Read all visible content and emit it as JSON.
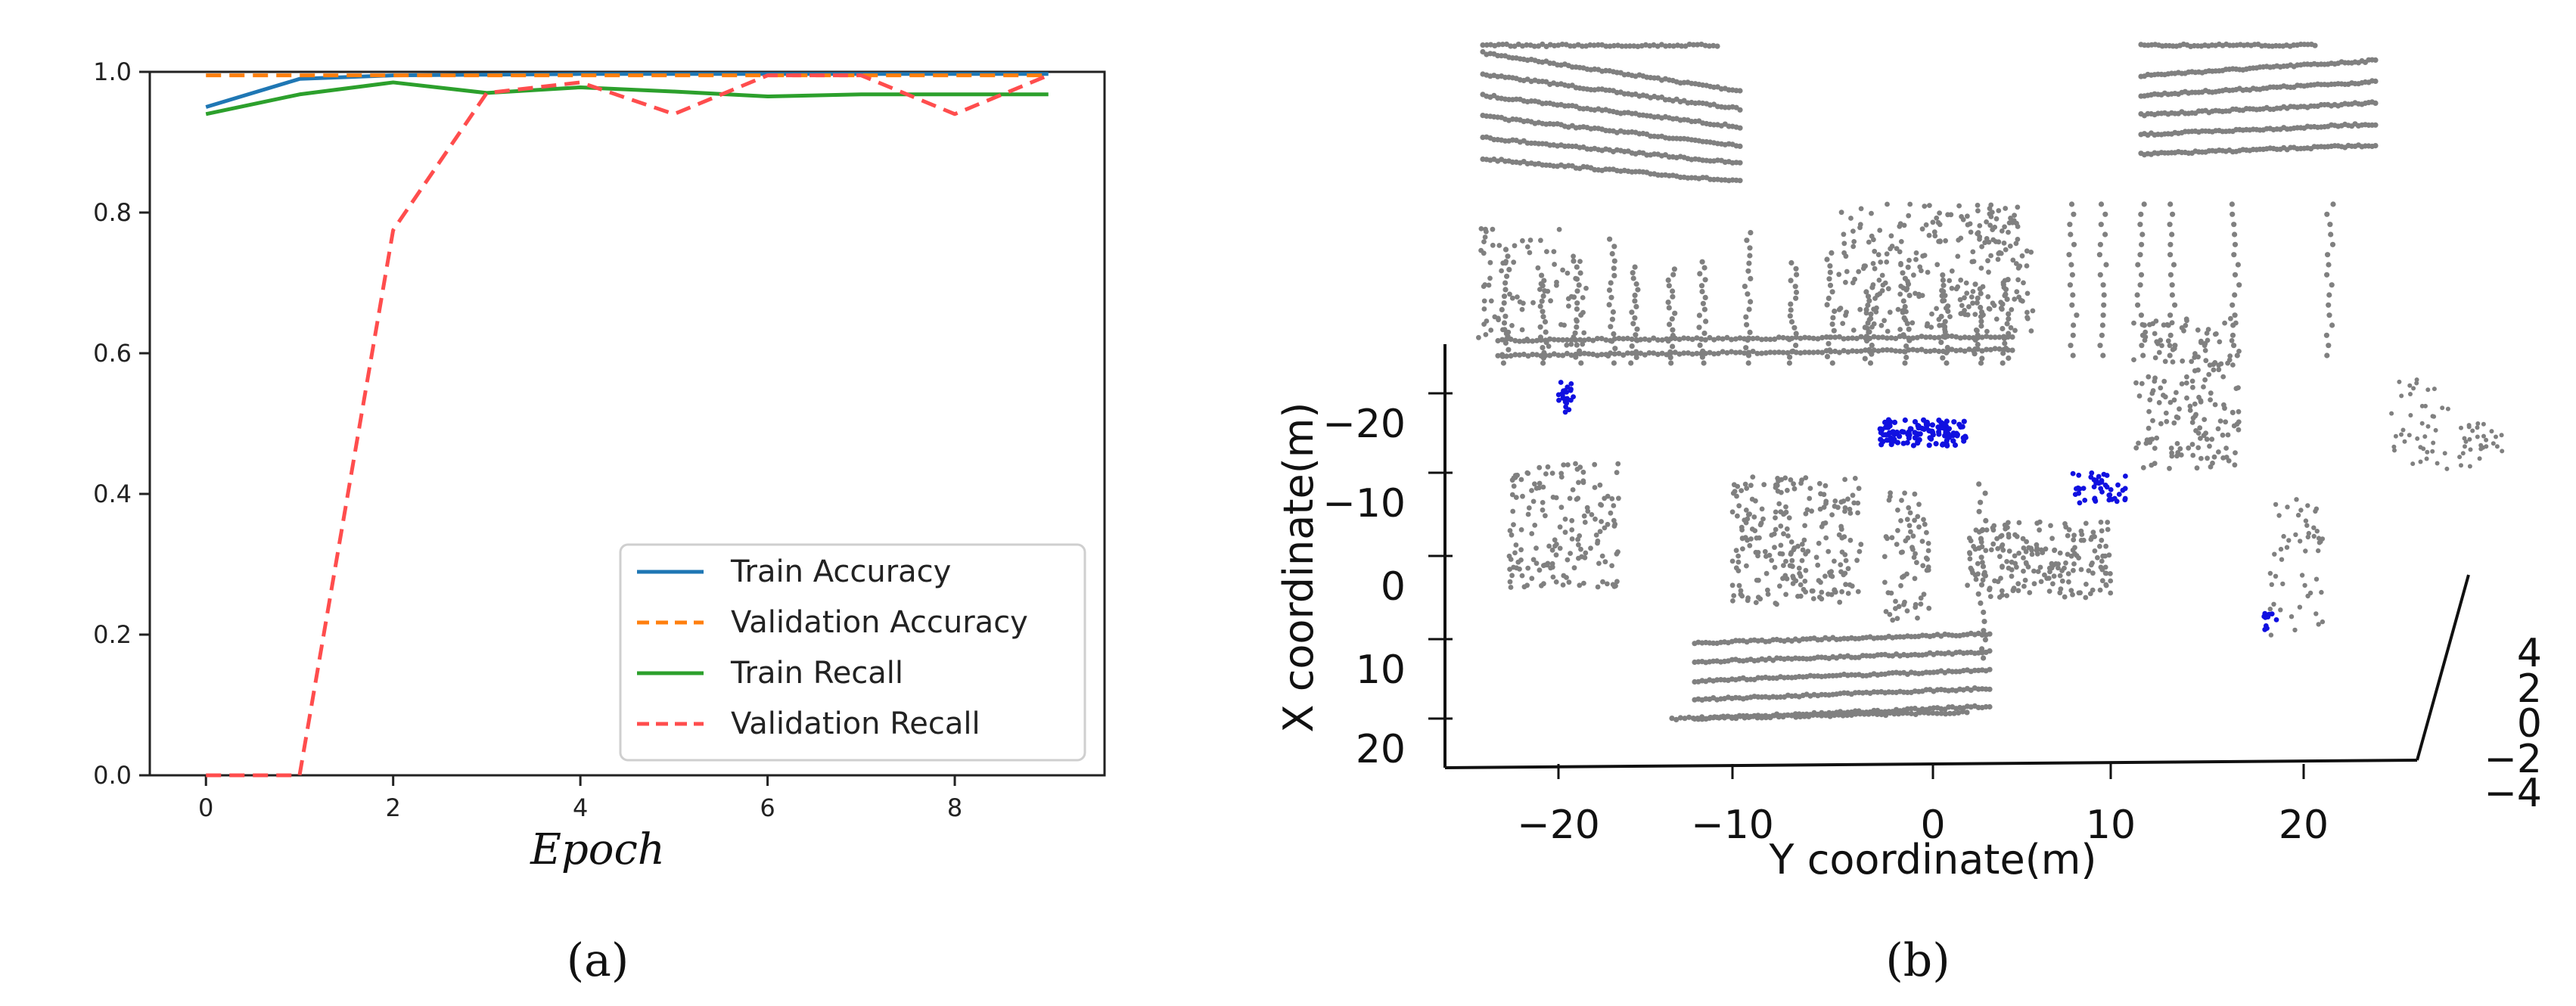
{
  "chart_data": [
    {
      "type": "line",
      "panel_label": "(a)",
      "title": "",
      "xlabel": "Epoch",
      "ylabel": "",
      "xlim": [
        -0.6,
        9.6
      ],
      "ylim": [
        0.0,
        1.0
      ],
      "x_ticks": [
        0,
        2,
        4,
        6,
        8
      ],
      "y_ticks": [
        0.0,
        0.2,
        0.4,
        0.6,
        0.8,
        1.0
      ],
      "x": [
        0,
        1,
        2,
        3,
        4,
        5,
        6,
        7,
        8,
        9
      ],
      "legend_position": "lower-right",
      "grid": false,
      "series": [
        {
          "name": "Train Accuracy",
          "color": "#1f77b4",
          "dash": "solid",
          "values": [
            0.95,
            0.99,
            0.995,
            0.996,
            0.997,
            0.997,
            0.997,
            0.997,
            0.997,
            0.997
          ]
        },
        {
          "name": "Validation Accuracy",
          "color": "#ff7f0e",
          "dash": "dashed",
          "values": [
            0.995,
            0.995,
            0.995,
            0.995,
            0.995,
            0.995,
            0.995,
            0.995,
            0.995,
            0.995
          ]
        },
        {
          "name": "Train Recall",
          "color": "#2ca02c",
          "dash": "solid",
          "values": [
            0.94,
            0.968,
            0.985,
            0.97,
            0.978,
            0.972,
            0.965,
            0.968,
            0.968,
            0.968
          ]
        },
        {
          "name": "Validation Recall",
          "color": "#ff4d4d",
          "dash": "dashed",
          "values": [
            0.0,
            0.0,
            0.775,
            0.97,
            0.985,
            0.94,
            0.995,
            0.995,
            0.94,
            0.995
          ]
        }
      ]
    },
    {
      "type": "scatter",
      "panel_label": "(b)",
      "title": "",
      "xlabel": "Y coordinate(m)",
      "ylabel": "X coordinate(m)",
      "x_ticks": [
        "−20",
        "−10",
        "0",
        "10",
        "20"
      ],
      "y_ticks": [
        "−20",
        "−10",
        "0",
        "10",
        "20"
      ],
      "z_ticks": [
        "4",
        "2",
        "0",
        "−2",
        "−4"
      ],
      "colors": {
        "background_points": "#808080",
        "highlight_points": "#1010e0"
      }
    }
  ]
}
